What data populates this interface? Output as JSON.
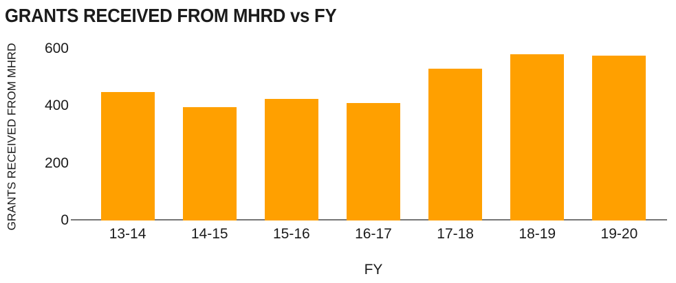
{
  "chart_data": {
    "type": "bar",
    "title": "GRANTS RECEIVED FROM MHRD vs FY",
    "xlabel": "FY",
    "ylabel": "GRANTS RECEIVED FROM MHRD",
    "categories": [
      "13-14",
      "14-15",
      "15-16",
      "16-17",
      "17-18",
      "18-19",
      "19-20"
    ],
    "values": [
      450,
      395,
      425,
      410,
      530,
      580,
      575
    ],
    "ylim": [
      0,
      600
    ],
    "yticks": [
      0,
      200,
      400,
      600
    ],
    "grid": false,
    "legend": false,
    "colors": {
      "bar": "#FFA000",
      "axis_line": "#757575",
      "text": "#1B1B1B"
    }
  }
}
